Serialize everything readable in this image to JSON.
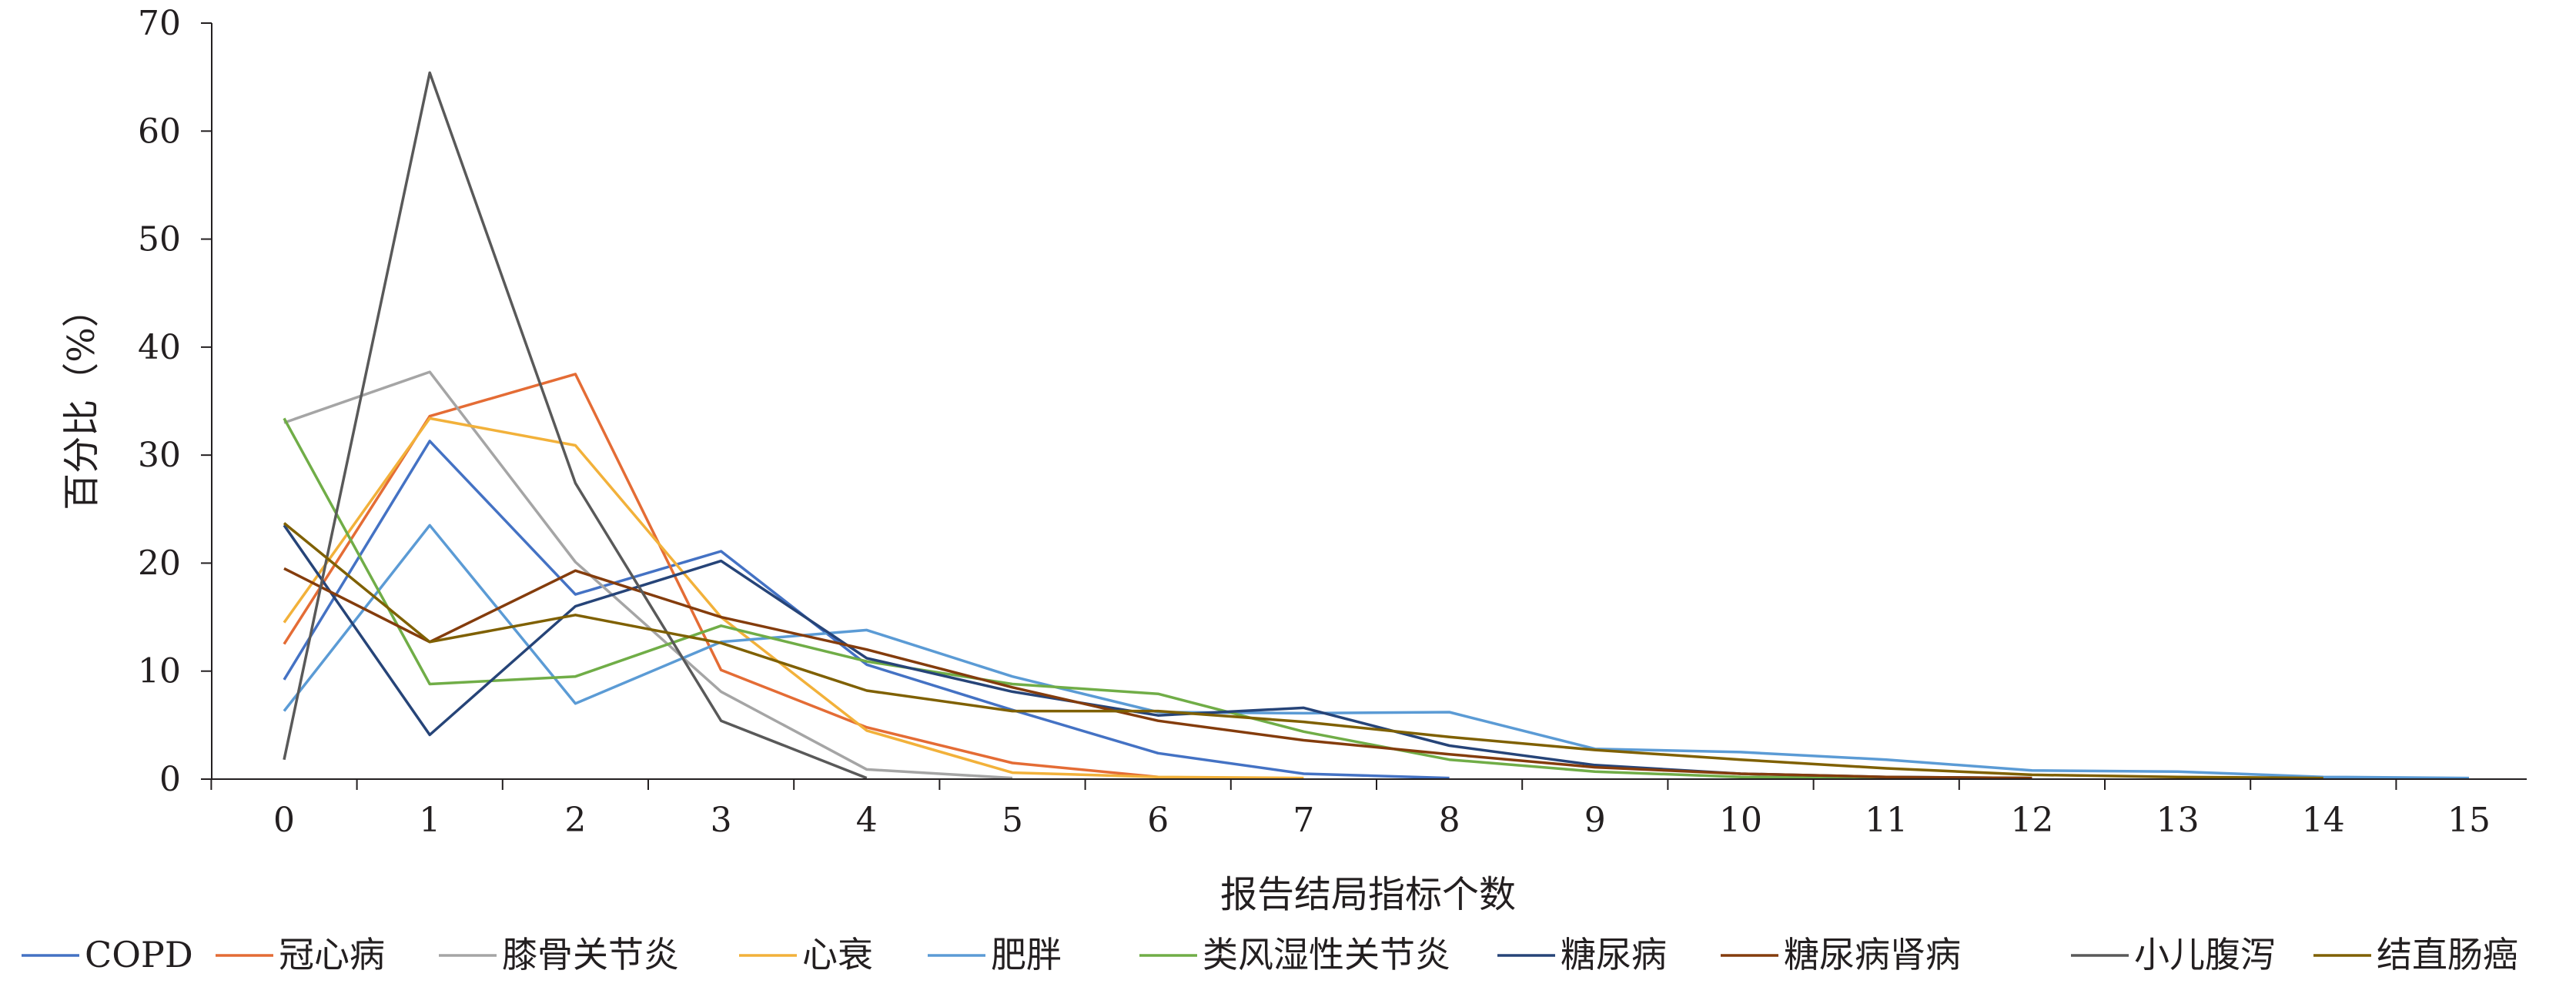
{
  "chart_data": {
    "type": "line",
    "title": "",
    "xlabel": "报告结局指标个数",
    "ylabel": "百分比（%）",
    "ylim": [
      0,
      70
    ],
    "xlim": [
      0,
      15
    ],
    "grid": false,
    "legend_position": "bottom",
    "x": [
      0,
      1,
      2,
      3,
      4,
      5,
      6,
      7,
      8,
      9,
      10,
      11,
      12,
      13,
      14,
      15
    ],
    "x_tick_labels": [
      "0",
      "1",
      "2",
      "3",
      "4",
      "5",
      "6",
      "7",
      "8",
      "9",
      "10",
      "11",
      "12",
      "13",
      "14",
      "15"
    ],
    "y_ticks": [
      0,
      10,
      20,
      30,
      40,
      50,
      60,
      70
    ],
    "y_tick_labels": [
      "0",
      "10",
      "20",
      "30",
      "40",
      "50",
      "60",
      "70"
    ],
    "series": [
      {
        "name": "COPD",
        "color": "#4472c4",
        "values": [
          9.2,
          31.3,
          17.1,
          21.1,
          10.6,
          6.4,
          2.4,
          0.5,
          0.1,
          null,
          null,
          null,
          null,
          null,
          null,
          null
        ]
      },
      {
        "name": "冠心病",
        "color": "#e46c35",
        "values": [
          12.5,
          33.6,
          37.5,
          10.1,
          4.8,
          1.5,
          0.2,
          null,
          null,
          null,
          null,
          null,
          null,
          null,
          null,
          null
        ]
      },
      {
        "name": "膝骨关节炎",
        "color": "#a5a5a5",
        "values": [
          33.0,
          37.7,
          20.1,
          8.1,
          0.9,
          0.1,
          null,
          null,
          null,
          null,
          null,
          null,
          null,
          null,
          null,
          null
        ]
      },
      {
        "name": "心衰",
        "color": "#f2b13a",
        "values": [
          14.5,
          33.4,
          30.9,
          15.0,
          4.5,
          0.6,
          0.2,
          0.1,
          null,
          null,
          null,
          null,
          null,
          null,
          null,
          null
        ]
      },
      {
        "name": "肥胖",
        "color": "#5b9bd5",
        "values": [
          6.3,
          23.5,
          7.0,
          12.7,
          13.8,
          9.5,
          6.2,
          6.1,
          6.2,
          2.8,
          2.5,
          1.8,
          0.8,
          0.7,
          0.2,
          0.1
        ]
      },
      {
        "name": "类风湿性关节炎",
        "color": "#70ad47",
        "values": [
          33.4,
          8.8,
          9.5,
          14.2,
          10.9,
          8.8,
          7.9,
          4.4,
          1.8,
          0.7,
          0.2,
          0.1,
          null,
          null,
          null,
          null
        ]
      },
      {
        "name": "糖尿病",
        "color": "#264478",
        "values": [
          23.5,
          4.1,
          16.0,
          20.2,
          11.2,
          8.1,
          5.9,
          6.6,
          3.1,
          1.3,
          0.5,
          0.2,
          0.1,
          null,
          null,
          null
        ]
      },
      {
        "name": "糖尿病肾病",
        "color": "#843c0c",
        "values": [
          19.5,
          12.7,
          19.3,
          15.0,
          12.0,
          8.5,
          5.4,
          3.6,
          2.3,
          1.1,
          0.5,
          0.2,
          0.1,
          null,
          null,
          null
        ]
      },
      {
        "name": "小儿腹泻",
        "color": "#595959",
        "values": [
          1.8,
          65.4,
          27.4,
          5.4,
          0.1,
          null,
          null,
          null,
          null,
          null,
          null,
          null,
          null,
          null,
          null,
          null
        ]
      },
      {
        "name": "结直肠癌",
        "color": "#7f6000",
        "values": [
          23.7,
          12.7,
          15.2,
          12.6,
          8.2,
          6.3,
          6.3,
          5.3,
          3.9,
          2.7,
          1.8,
          1.0,
          0.4,
          0.2,
          0.1,
          null
        ]
      }
    ]
  }
}
